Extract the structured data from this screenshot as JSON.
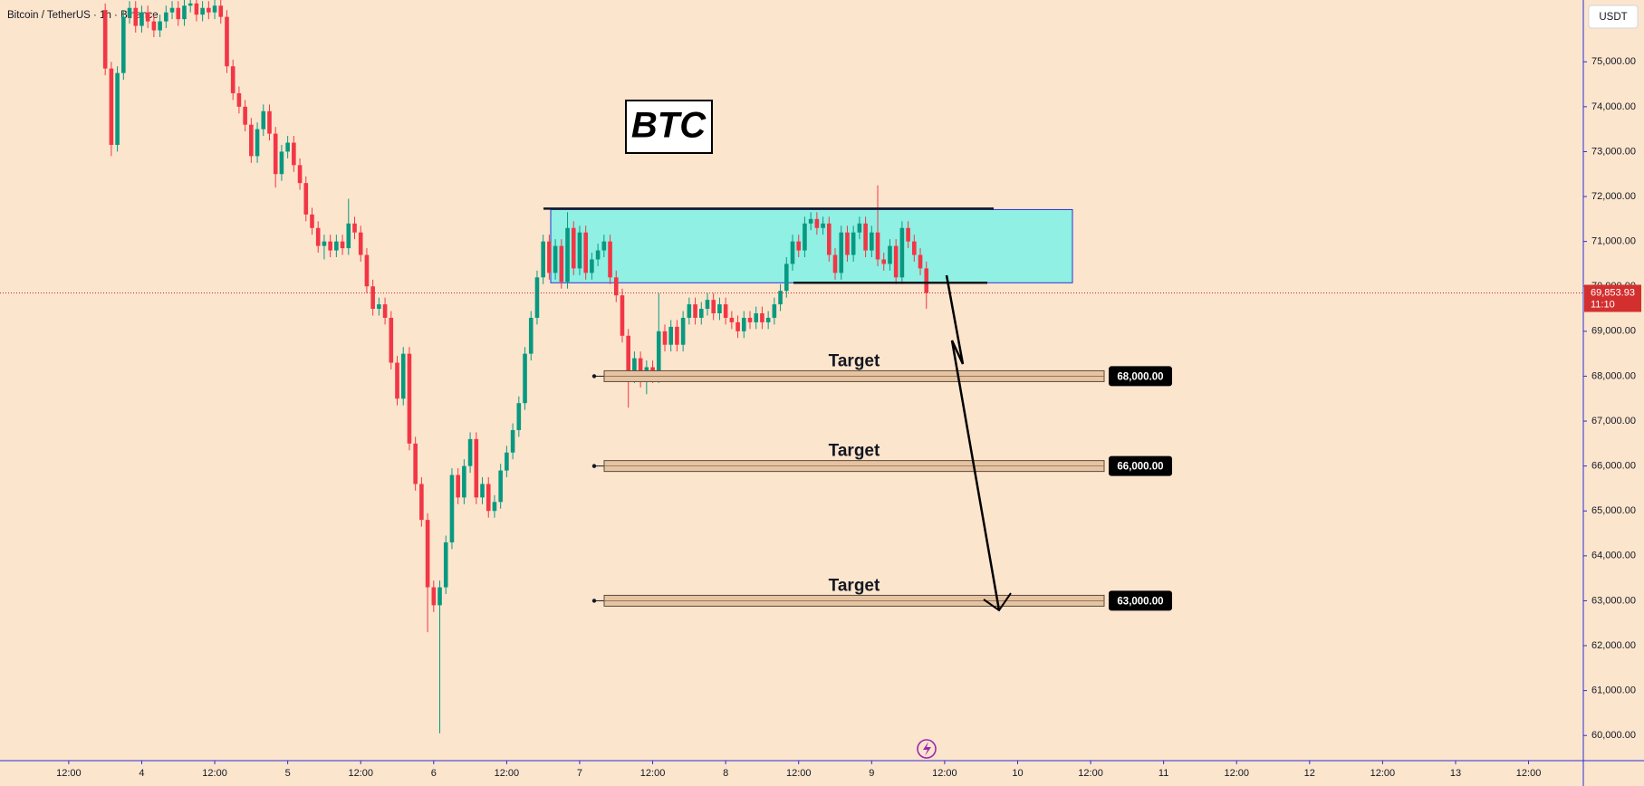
{
  "chart_data": {
    "type": "candlestick",
    "title": "Bitcoin / TetherUS · 1h · Binance",
    "currency": "USDT",
    "annotation": "BTC",
    "up_color": "#089981",
    "down_color": "#f23645",
    "grid": false,
    "xlim": [
      -17.3,
      243
    ],
    "ylim": [
      59440,
      76376
    ],
    "xticks": [
      {
        "value": -6,
        "label": "12:00"
      },
      {
        "value": 6,
        "label": "4"
      },
      {
        "value": 18,
        "label": "12:00"
      },
      {
        "value": 30,
        "label": "5"
      },
      {
        "value": 42,
        "label": "12:00"
      },
      {
        "value": 54,
        "label": "6"
      },
      {
        "value": 66,
        "label": "12:00"
      },
      {
        "value": 78,
        "label": "7"
      },
      {
        "value": 90,
        "label": "12:00"
      },
      {
        "value": 102,
        "label": "8"
      },
      {
        "value": 114,
        "label": "12:00"
      },
      {
        "value": 126,
        "label": "9"
      },
      {
        "value": 138,
        "label": "12:00"
      },
      {
        "value": 150,
        "label": "10"
      },
      {
        "value": 162,
        "label": "12:00"
      },
      {
        "value": 174,
        "label": "11"
      },
      {
        "value": 186,
        "label": "12:00"
      },
      {
        "value": 198,
        "label": "12"
      },
      {
        "value": 210,
        "label": "12:00"
      },
      {
        "value": 222,
        "label": "13"
      },
      {
        "value": 234,
        "label": "12:00"
      }
    ],
    "yticks": [
      {
        "value": 60000,
        "label": "60,000.00"
      },
      {
        "value": 61000,
        "label": "61,000.00"
      },
      {
        "value": 62000,
        "label": "62,000.00"
      },
      {
        "value": 63000,
        "label": "63,000.00"
      },
      {
        "value": 64000,
        "label": "64,000.00"
      },
      {
        "value": 65000,
        "label": "65,000.00"
      },
      {
        "value": 66000,
        "label": "66,000.00"
      },
      {
        "value": 67000,
        "label": "67,000.00"
      },
      {
        "value": 68000,
        "label": "68,000.00"
      },
      {
        "value": 69000,
        "label": "69,000.00"
      },
      {
        "value": 70000,
        "label": "70,000.00"
      },
      {
        "value": 71000,
        "label": "71,000.00"
      },
      {
        "value": 72000,
        "label": "72,000.00"
      },
      {
        "value": 73000,
        "label": "73,000.00"
      },
      {
        "value": 74000,
        "label": "74,000.00"
      },
      {
        "value": 75000,
        "label": "75,000.00"
      }
    ],
    "open": [
      76150,
      74850,
      73150,
      74750,
      76000,
      76200,
      75800,
      76100,
      75900,
      75700,
      75900,
      76100,
      76200,
      75950,
      76250,
      76300,
      76050,
      76200,
      76100,
      76250,
      76000,
      74900,
      74300,
      74000,
      73600,
      72900,
      73500,
      73900,
      73400,
      72500,
      73000,
      73200,
      72700,
      72300,
      71600,
      71300,
      70900,
      71000,
      70800,
      71000,
      70850,
      71400,
      71200,
      70700,
      70000,
      69500,
      69600,
      69300,
      68300,
      67500,
      68500,
      66500,
      65600,
      64800,
      63300,
      62900,
      63300,
      64300,
      65800,
      65300,
      66000,
      66600,
      65300,
      65600,
      65000,
      65200,
      65900,
      66300,
      66800,
      67400,
      68500,
      69300,
      70200,
      71000,
      70300,
      70900,
      70100,
      71300,
      70400,
      71200,
      70300,
      70600,
      70800,
      71000,
      70200,
      69800,
      68900,
      68000,
      68400,
      67900,
      68200,
      68000,
      69000,
      68700,
      69100,
      68700,
      69300,
      69600,
      69300,
      69500,
      69700,
      69400,
      69600,
      69300,
      69200,
      69000,
      69300,
      69200,
      69400,
      69200,
      69300,
      69600,
      69900,
      70500,
      71000,
      70800,
      71400,
      71500,
      71300,
      71400,
      70700,
      70300,
      71200,
      70700,
      71200,
      71400,
      70800,
      71200,
      70600,
      70500,
      70900,
      70200,
      71300,
      71000,
      70700,
      70400
    ],
    "high": [
      76300,
      75000,
      74900,
      76150,
      76350,
      76350,
      76250,
      76250,
      76050,
      76050,
      76250,
      76350,
      76350,
      76400,
      76450,
      76450,
      76350,
      76350,
      76400,
      76400,
      76150,
      75050,
      74450,
      74150,
      73750,
      73650,
      74050,
      74050,
      73550,
      73150,
      73350,
      73350,
      72850,
      72450,
      71750,
      71450,
      71150,
      71150,
      71150,
      71150,
      71950,
      71550,
      71350,
      70850,
      70150,
      69750,
      69750,
      69450,
      68450,
      68650,
      68650,
      66650,
      65750,
      64950,
      63450,
      63450,
      64450,
      65950,
      65950,
      66150,
      66750,
      66750,
      65750,
      65750,
      65350,
      66050,
      66450,
      66950,
      67550,
      68650,
      69450,
      70350,
      71150,
      71150,
      71050,
      71050,
      71650,
      71450,
      71350,
      71350,
      70750,
      70950,
      71150,
      71150,
      70350,
      69950,
      69050,
      68550,
      68550,
      68350,
      68350,
      69850,
      69150,
      69250,
      69250,
      69450,
      69750,
      69750,
      69650,
      69850,
      69850,
      69750,
      69750,
      69450,
      69350,
      69450,
      69450,
      69550,
      69550,
      69450,
      69750,
      70050,
      70650,
      71150,
      71150,
      71550,
      71650,
      71650,
      71550,
      71550,
      70850,
      71350,
      71350,
      71350,
      71550,
      71550,
      71350,
      72250,
      70750,
      71050,
      71050,
      71450,
      71450,
      71150,
      70850,
      70550
    ],
    "low": [
      74700,
      72900,
      73000,
      74600,
      75850,
      75650,
      75650,
      75750,
      75550,
      75550,
      75750,
      75950,
      75800,
      75800,
      76100,
      75900,
      75900,
      75950,
      75950,
      75850,
      74750,
      74150,
      73850,
      73450,
      72750,
      72750,
      73350,
      73250,
      72200,
      72350,
      72850,
      72550,
      72150,
      71450,
      71150,
      70750,
      70600,
      70650,
      70650,
      70700,
      70700,
      71050,
      70550,
      69850,
      69350,
      69350,
      69150,
      68150,
      67350,
      67350,
      66350,
      65450,
      64650,
      62300,
      62750,
      60050,
      63150,
      64150,
      65150,
      65150,
      65850,
      65150,
      65150,
      64850,
      64850,
      65050,
      65750,
      66150,
      66650,
      67250,
      68350,
      69150,
      70050,
      70150,
      70150,
      69950,
      69950,
      70250,
      70250,
      70150,
      70150,
      70450,
      70650,
      70050,
      69650,
      68750,
      67300,
      67850,
      67750,
      67600,
      67850,
      67850,
      68550,
      68550,
      68550,
      68550,
      69150,
      69150,
      69150,
      69350,
      69250,
      69250,
      69150,
      69050,
      68850,
      68850,
      69050,
      69050,
      69050,
      69050,
      69150,
      69450,
      69750,
      70350,
      70650,
      70650,
      71250,
      71150,
      71150,
      70550,
      70150,
      70150,
      70550,
      70550,
      71050,
      70650,
      70650,
      70450,
      70350,
      70350,
      70050,
      70050,
      70850,
      70550,
      70250,
      69500
    ],
    "close": [
      74850,
      73150,
      74750,
      76000,
      76200,
      75800,
      76100,
      75900,
      75700,
      75900,
      76100,
      76200,
      75950,
      76250,
      76300,
      76050,
      76200,
      76100,
      76250,
      76000,
      74900,
      74300,
      74000,
      73600,
      72900,
      73500,
      73900,
      73400,
      72500,
      73000,
      73200,
      72700,
      72300,
      71600,
      71300,
      70900,
      71000,
      70800,
      71000,
      70850,
      71400,
      71200,
      70700,
      70000,
      69500,
      69600,
      69300,
      68300,
      67500,
      68500,
      66500,
      65600,
      64800,
      63300,
      62900,
      63300,
      64300,
      65800,
      65300,
      66000,
      66600,
      65300,
      65600,
      65000,
      65200,
      65900,
      66300,
      66800,
      67400,
      68500,
      69300,
      70200,
      71000,
      70300,
      70900,
      70100,
      71300,
      70400,
      71200,
      70300,
      70600,
      70800,
      71000,
      70200,
      69800,
      68900,
      68000,
      68400,
      67900,
      68200,
      68000,
      69000,
      68700,
      69100,
      68700,
      69300,
      69600,
      69300,
      69500,
      69700,
      69400,
      69600,
      69300,
      69200,
      69000,
      69300,
      69200,
      69400,
      69200,
      69300,
      69600,
      69900,
      70500,
      71000,
      70800,
      71400,
      71500,
      71300,
      71400,
      70700,
      70300,
      71200,
      70700,
      71200,
      71400,
      70800,
      71200,
      70600,
      70500,
      70900,
      70200,
      71300,
      71000,
      70700,
      70400,
      69853.93
    ],
    "last_price": 69853.93,
    "last_price_label": "69,853.93",
    "countdown": "11:10",
    "zone": [
      70080,
      71710
    ],
    "targets": [
      {
        "label": "Target",
        "price": 68000,
        "price_label": "68,000.00"
      },
      {
        "label": "Target",
        "price": 66000,
        "price_label": "66,000.00"
      },
      {
        "label": "Target",
        "price": 63000,
        "price_label": "63,000.00"
      }
    ]
  }
}
